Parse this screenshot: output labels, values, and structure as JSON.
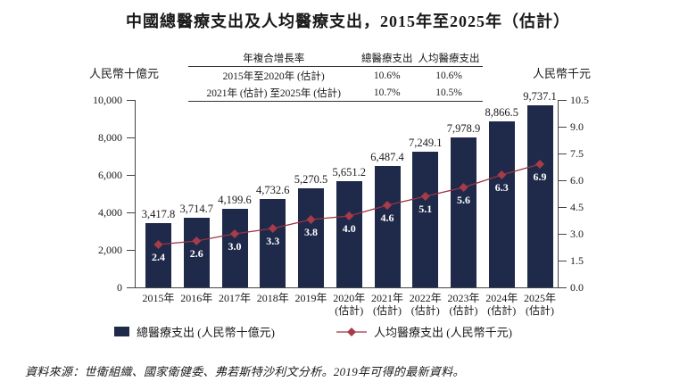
{
  "title": "中國總醫療支出及人均醫療支出，2015年至2025年（估計）",
  "cagr_table": {
    "headers": [
      "年複合增長率",
      "總醫療支出",
      "人均醫療支出"
    ],
    "rows": [
      [
        "2015年至2020年 (估計)",
        "10.6%",
        "10.6%"
      ],
      [
        "2021年 (估計) 至2025年 (估計)",
        "10.7%",
        "10.5%"
      ]
    ]
  },
  "legend": {
    "bar_label": "總醫療支出 (人民幣十億元)",
    "line_label": "人均醫療支出 (人民幣千元)"
  },
  "source": "資料來源：世衛組織、國家衛健委、弗若斯特沙利文分析。2019年可得的最新資料。",
  "colors": {
    "bar_navy": "#1f2a4a",
    "line_red": "#9a3341",
    "marker_red": "#a63b4a",
    "axis_gray": "#444444"
  },
  "chart_data": {
    "type": "bar",
    "subtype": "bar+line dual-axis combo",
    "title": "中國總醫療支出及人均醫療支出，2015年至2025年（估計）",
    "grid": false,
    "legend_position": "bottom",
    "categories": [
      {
        "year": "2015年",
        "note": ""
      },
      {
        "year": "2016年",
        "note": ""
      },
      {
        "year": "2017年",
        "note": ""
      },
      {
        "year": "2018年",
        "note": ""
      },
      {
        "year": "2019年",
        "note": ""
      },
      {
        "year": "2020年",
        "note": "(估計)"
      },
      {
        "year": "2021年",
        "note": "(估計)"
      },
      {
        "year": "2022年",
        "note": "(估計)"
      },
      {
        "year": "2023年",
        "note": "(估計)"
      },
      {
        "year": "2024年",
        "note": "(估計)"
      },
      {
        "year": "2025年",
        "note": "(估計)"
      }
    ],
    "series": [
      {
        "name": "總醫療支出 (人民幣十億元)",
        "type": "bar",
        "axis": "left",
        "color": "#1f2a4a",
        "values": [
          3417.8,
          3714.7,
          4199.6,
          4732.6,
          5270.5,
          5651.2,
          6487.4,
          7249.1,
          7978.9,
          8866.5,
          9737.1
        ],
        "labels": [
          "3,417.8",
          "3,714.7",
          "4,199.6",
          "4,732.6",
          "5,270.5",
          "5,651.2",
          "6,487.4",
          "7,249.1",
          "7,978.9",
          "8,866.5",
          "9,737.1"
        ]
      },
      {
        "name": "人均醫療支出 (人民幣千元)",
        "type": "line",
        "axis": "right",
        "marker": "diamond",
        "color": "#9a3341",
        "marker_color": "#a63b4a",
        "values": [
          2.4,
          2.6,
          3.0,
          3.3,
          3.8,
          4.0,
          4.6,
          5.1,
          5.6,
          6.3,
          6.9
        ],
        "labels": [
          "2.4",
          "2.6",
          "3.0",
          "3.3",
          "3.8",
          "4.0",
          "4.6",
          "5.1",
          "5.6",
          "6.3",
          "6.9"
        ]
      }
    ],
    "left_axis": {
      "title": "人民幣十億元",
      "min": 0,
      "max": 10000,
      "ticks": [
        "0",
        "2,000",
        "4,000",
        "6,000",
        "8,000",
        "10,000"
      ]
    },
    "right_axis": {
      "title": "人民幣千元",
      "min": 0,
      "max": 10.5,
      "ticks": [
        "0.0",
        "1.5",
        "3.0",
        "4.5",
        "6.0",
        "7.5",
        "9.0",
        "10.5"
      ]
    }
  }
}
